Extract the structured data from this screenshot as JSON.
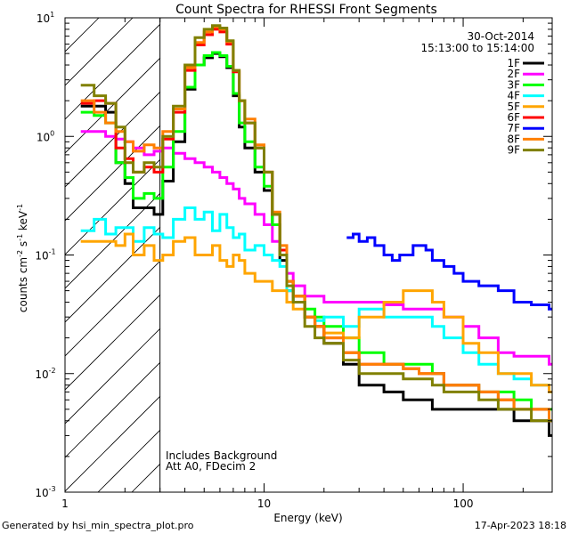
{
  "chart_data": {
    "type": "line",
    "title": "Count Spectra for RHESSI Front Segments",
    "xlabel": "Energy (keV)",
    "ylabel_base": "counts cm",
    "ylabel_sup1": "-2",
    "ylabel_mid": " s",
    "ylabel_sup2": "-1",
    "ylabel_end": " keV",
    "ylabel_sup3": "-1",
    "xscale": "log",
    "yscale": "log",
    "xlim": [
      1,
      280
    ],
    "ylim": [
      0.001,
      10
    ],
    "x_ticks": [
      {
        "value": 1,
        "base": "1",
        "exp": ""
      },
      {
        "value": 10,
        "base": "10",
        "exp": ""
      },
      {
        "value": 100,
        "base": "100",
        "exp": ""
      }
    ],
    "y_ticks": [
      {
        "value": 10,
        "base": "10",
        "exp": "1"
      },
      {
        "value": 1,
        "base": "10",
        "exp": "0"
      },
      {
        "value": 0.1,
        "base": "10",
        "exp": "-1"
      },
      {
        "value": 0.01,
        "base": "10",
        "exp": "-2"
      },
      {
        "value": 0.001,
        "base": "10",
        "exp": "-3"
      }
    ],
    "attenuator_cutoff_kev": 3,
    "date": "30-Oct-2014",
    "time_range": "15:13:00 to 15:14:00",
    "notes": [
      "Includes Background",
      "Att A0, FDecim 2"
    ],
    "footer_left": "Generated by hsi_min_spectra_plot.pro",
    "footer_right": "17-Apr-2023 18:18",
    "series": [
      {
        "name": "1F",
        "color": "#000000",
        "x": [
          1.2,
          1.4,
          1.6,
          1.8,
          2.0,
          2.2,
          2.5,
          2.8,
          3.1,
          3.5,
          4.0,
          4.5,
          5.0,
          5.5,
          6.0,
          6.5,
          7.0,
          7.5,
          8.0,
          9.0,
          10,
          11,
          12,
          13,
          14,
          16,
          18,
          20,
          25,
          30,
          40,
          50,
          60,
          70,
          80,
          100,
          120,
          150,
          180,
          220,
          270
        ],
        "y": [
          1.8,
          1.8,
          1.6,
          0.6,
          0.4,
          0.25,
          0.25,
          0.22,
          0.42,
          0.9,
          2.5,
          4.0,
          4.6,
          5.0,
          4.7,
          3.8,
          2.2,
          1.2,
          0.8,
          0.5,
          0.35,
          0.18,
          0.09,
          0.05,
          0.04,
          0.03,
          0.025,
          0.018,
          0.012,
          0.008,
          0.007,
          0.006,
          0.006,
          0.005,
          0.005,
          0.005,
          0.005,
          0.005,
          0.004,
          0.004,
          0.003
        ]
      },
      {
        "name": "2F",
        "color": "#ff00ff",
        "x": [
          1.2,
          1.4,
          1.6,
          1.8,
          2.0,
          2.2,
          2.5,
          2.8,
          3.1,
          3.5,
          4.0,
          4.5,
          5.0,
          5.5,
          6.0,
          6.5,
          7.0,
          7.5,
          8.0,
          9.0,
          10,
          11,
          12,
          13,
          14,
          16,
          18,
          20,
          25,
          30,
          40,
          50,
          60,
          70,
          80,
          100,
          120,
          150,
          180,
          220,
          270
        ],
        "y": [
          1.1,
          1.1,
          1.0,
          0.95,
          0.9,
          0.8,
          0.7,
          0.75,
          0.8,
          0.72,
          0.65,
          0.6,
          0.55,
          0.5,
          0.45,
          0.4,
          0.36,
          0.3,
          0.27,
          0.22,
          0.18,
          0.13,
          0.1,
          0.07,
          0.055,
          0.045,
          0.045,
          0.04,
          0.04,
          0.04,
          0.038,
          0.035,
          0.035,
          0.035,
          0.03,
          0.025,
          0.02,
          0.015,
          0.014,
          0.014,
          0.012
        ]
      },
      {
        "name": "3F",
        "color": "#00ff00",
        "x": [
          1.2,
          1.4,
          1.6,
          1.8,
          2.0,
          2.2,
          2.5,
          2.8,
          3.1,
          3.5,
          4.0,
          4.5,
          5.0,
          5.5,
          6.0,
          6.5,
          7.0,
          7.5,
          8.0,
          9.0,
          10,
          11,
          12,
          13,
          14,
          16,
          18,
          20,
          25,
          30,
          40,
          50,
          60,
          70,
          80,
          100,
          120,
          150,
          180,
          220,
          270
        ],
        "y": [
          1.6,
          1.5,
          1.3,
          0.6,
          0.45,
          0.3,
          0.33,
          0.3,
          0.55,
          1.1,
          2.6,
          4.0,
          4.8,
          5.1,
          4.8,
          3.9,
          2.3,
          1.3,
          0.9,
          0.55,
          0.38,
          0.18,
          0.1,
          0.06,
          0.045,
          0.035,
          0.03,
          0.025,
          0.02,
          0.015,
          0.012,
          0.012,
          0.012,
          0.01,
          0.008,
          0.008,
          0.007,
          0.007,
          0.006,
          0.005,
          0.005
        ]
      },
      {
        "name": "4F",
        "color": "#00ffff",
        "x": [
          1.2,
          1.4,
          1.6,
          1.8,
          2.0,
          2.2,
          2.5,
          2.8,
          3.1,
          3.5,
          4.0,
          4.5,
          5.0,
          5.5,
          6.0,
          6.5,
          7.0,
          7.5,
          8.0,
          9.0,
          10,
          11,
          12,
          13,
          14,
          16,
          18,
          20,
          25,
          30,
          40,
          50,
          60,
          70,
          80,
          100,
          120,
          150,
          180,
          220,
          270
        ],
        "y": [
          0.16,
          0.2,
          0.15,
          0.17,
          0.17,
          0.13,
          0.17,
          0.15,
          0.14,
          0.2,
          0.25,
          0.2,
          0.23,
          0.16,
          0.22,
          0.17,
          0.14,
          0.15,
          0.11,
          0.12,
          0.1,
          0.09,
          0.08,
          0.05,
          0.04,
          0.03,
          0.028,
          0.03,
          0.025,
          0.035,
          0.03,
          0.03,
          0.03,
          0.025,
          0.02,
          0.015,
          0.012,
          0.01,
          0.009,
          0.008,
          0.007
        ]
      },
      {
        "name": "5F",
        "color": "#ffa500",
        "x": [
          1.2,
          1.4,
          1.6,
          1.8,
          2.0,
          2.2,
          2.5,
          2.8,
          3.1,
          3.5,
          4.0,
          4.5,
          5.0,
          5.5,
          6.0,
          6.5,
          7.0,
          7.5,
          8.0,
          9.0,
          10,
          11,
          12,
          13,
          14,
          16,
          18,
          20,
          25,
          30,
          40,
          50,
          60,
          70,
          80,
          100,
          120,
          150,
          180,
          220,
          270
        ],
        "y": [
          0.13,
          0.13,
          0.13,
          0.12,
          0.15,
          0.1,
          0.12,
          0.09,
          0.1,
          0.13,
          0.14,
          0.1,
          0.1,
          0.12,
          0.09,
          0.08,
          0.1,
          0.09,
          0.07,
          0.06,
          0.06,
          0.05,
          0.05,
          0.04,
          0.035,
          0.03,
          0.025,
          0.022,
          0.02,
          0.03,
          0.04,
          0.05,
          0.05,
          0.04,
          0.03,
          0.018,
          0.015,
          0.01,
          0.01,
          0.008,
          0.007
        ]
      },
      {
        "name": "6F",
        "color": "#ff0000",
        "x": [
          1.2,
          1.4,
          1.6,
          1.8,
          2.0,
          2.2,
          2.5,
          2.8,
          3.1,
          3.5,
          4.0,
          4.5,
          5.0,
          5.5,
          6.0,
          6.5,
          7.0,
          7.5,
          8.0,
          9.0,
          10,
          11,
          12,
          13,
          14,
          16,
          18,
          20,
          25,
          30,
          40,
          50,
          60,
          70,
          80,
          100,
          120,
          150,
          180,
          220,
          270
        ],
        "y": [
          1.9,
          2.0,
          1.9,
          0.8,
          0.65,
          0.5,
          0.55,
          0.5,
          0.95,
          1.6,
          3.6,
          5.9,
          7.2,
          8.0,
          7.6,
          6.0,
          3.5,
          2.0,
          1.3,
          0.8,
          0.5,
          0.22,
          0.11,
          0.06,
          0.045,
          0.03,
          0.025,
          0.02,
          0.015,
          0.012,
          0.012,
          0.011,
          0.01,
          0.01,
          0.008,
          0.008,
          0.007,
          0.006,
          0.005,
          0.005,
          0.004
        ]
      },
      {
        "name": "7F",
        "color": "#0000ff",
        "x": [
          26,
          28,
          30,
          33,
          36,
          40,
          44,
          48,
          52,
          56,
          60,
          65,
          70,
          80,
          90,
          100,
          120,
          150,
          180,
          220,
          270
        ],
        "y": [
          0.14,
          0.15,
          0.13,
          0.14,
          0.12,
          0.1,
          0.09,
          0.1,
          0.1,
          0.12,
          0.12,
          0.11,
          0.09,
          0.08,
          0.07,
          0.06,
          0.055,
          0.05,
          0.04,
          0.038,
          0.035
        ]
      },
      {
        "name": "8F",
        "color": "#ff7f00",
        "x": [
          1.2,
          1.4,
          1.6,
          1.8,
          2.0,
          2.2,
          2.5,
          2.8,
          3.1,
          3.5,
          4.0,
          4.5,
          5.0,
          5.5,
          6.0,
          6.5,
          7.0,
          7.5,
          8.0,
          9.0,
          10,
          11,
          12,
          13,
          14,
          16,
          18,
          20,
          25,
          30,
          40,
          50,
          60,
          70,
          80,
          100,
          120,
          150,
          180,
          220,
          270
        ],
        "y": [
          2.0,
          1.6,
          1.3,
          1.1,
          0.9,
          0.75,
          0.85,
          0.8,
          1.1,
          1.7,
          3.8,
          6.2,
          7.6,
          8.4,
          8.0,
          6.3,
          3.6,
          2.0,
          1.4,
          0.85,
          0.5,
          0.23,
          0.12,
          0.06,
          0.045,
          0.03,
          0.025,
          0.02,
          0.015,
          0.012,
          0.012,
          0.011,
          0.01,
          0.01,
          0.008,
          0.008,
          0.007,
          0.006,
          0.005,
          0.005,
          0.004
        ]
      },
      {
        "name": "9F",
        "color": "#808000",
        "x": [
          1.2,
          1.4,
          1.6,
          1.8,
          2.0,
          2.2,
          2.5,
          2.8,
          3.1,
          3.5,
          4.0,
          4.5,
          5.0,
          5.5,
          6.0,
          6.5,
          7.0,
          7.5,
          8.0,
          9.0,
          10,
          11,
          12,
          13,
          14,
          16,
          18,
          20,
          25,
          30,
          40,
          50,
          60,
          70,
          80,
          100,
          120,
          150,
          180,
          220,
          270
        ],
        "y": [
          2.7,
          2.2,
          1.9,
          1.2,
          0.6,
          0.5,
          0.6,
          0.55,
          1.0,
          1.8,
          4.0,
          6.8,
          8.0,
          8.6,
          8.2,
          6.4,
          3.6,
          2.0,
          1.3,
          0.8,
          0.5,
          0.22,
          0.1,
          0.055,
          0.04,
          0.025,
          0.02,
          0.018,
          0.013,
          0.01,
          0.01,
          0.009,
          0.009,
          0.008,
          0.007,
          0.007,
          0.006,
          0.005,
          0.005,
          0.004,
          0.004
        ]
      }
    ]
  }
}
